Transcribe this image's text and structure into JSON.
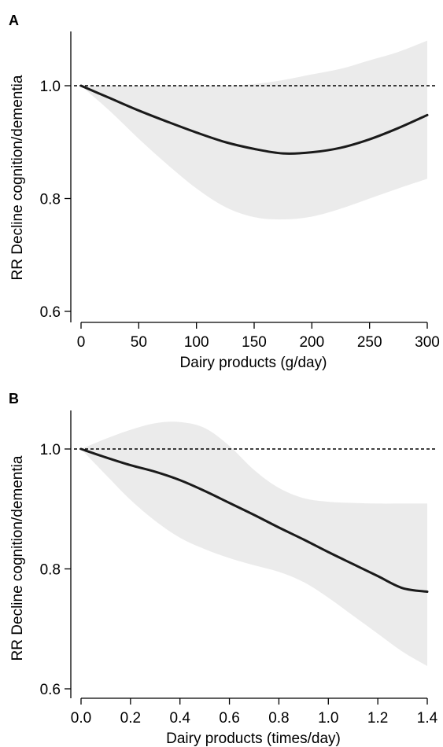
{
  "chart_data": [
    {
      "panel": "A",
      "type": "line",
      "xlabel": "Dairy products (g/day)",
      "ylabel": "RR Decline cognition/dementia",
      "xlim": [
        0,
        300
      ],
      "ylim": [
        0.6,
        1.1
      ],
      "xticks": [
        0,
        50,
        100,
        150,
        200,
        250,
        300
      ],
      "yticks": [
        0.6,
        0.8,
        1.0
      ],
      "xtick_labels": [
        "0",
        "50",
        "100",
        "150",
        "200",
        "250",
        "300"
      ],
      "ytick_labels": [
        "0.6",
        "0.8",
        "1.0"
      ],
      "reference_line": 1.0,
      "grid": false,
      "colors": {
        "line": "#1a1a1a",
        "band": "#ebebeb",
        "reference": "#000000"
      },
      "series": [
        {
          "role": "estimate",
          "x": [
            0,
            25,
            50,
            75,
            100,
            125,
            150,
            175,
            200,
            225,
            250,
            275,
            300
          ],
          "y": [
            1.0,
            0.978,
            0.956,
            0.936,
            0.917,
            0.9,
            0.888,
            0.88,
            0.882,
            0.89,
            0.905,
            0.925,
            0.948
          ]
        },
        {
          "role": "upper_ci",
          "x": [
            0,
            25,
            50,
            75,
            100,
            125,
            150,
            175,
            200,
            225,
            250,
            275,
            300
          ],
          "y": [
            1.0,
            1.0,
            1.0,
            1.0,
            1.0,
            1.0,
            1.003,
            1.01,
            1.02,
            1.03,
            1.045,
            1.06,
            1.08
          ]
        },
        {
          "role": "lower_ci",
          "x": [
            0,
            25,
            50,
            75,
            100,
            125,
            150,
            175,
            200,
            225,
            250,
            275,
            300
          ],
          "y": [
            1.0,
            0.955,
            0.906,
            0.86,
            0.818,
            0.785,
            0.767,
            0.763,
            0.768,
            0.782,
            0.8,
            0.818,
            0.835
          ]
        }
      ]
    },
    {
      "panel": "B",
      "type": "line",
      "xlabel": "Dairy products (times/day)",
      "ylabel": "RR Decline cognition/dementia",
      "xlim": [
        0,
        1.4
      ],
      "ylim": [
        0.6,
        1.07
      ],
      "xticks": [
        0.0,
        0.2,
        0.4,
        0.6,
        0.8,
        1.0,
        1.2,
        1.4
      ],
      "yticks": [
        0.6,
        0.8,
        1.0
      ],
      "xtick_labels": [
        "0.0",
        "0.2",
        "0.4",
        "0.6",
        "0.8",
        "1.0",
        "1.2",
        "1.4"
      ],
      "ytick_labels": [
        "0.6",
        "0.8",
        "1.0"
      ],
      "reference_line": 1.0,
      "grid": false,
      "colors": {
        "line": "#1a1a1a",
        "band": "#ebebeb",
        "reference": "#000000"
      },
      "series": [
        {
          "role": "estimate",
          "x": [
            0,
            0.1,
            0.2,
            0.3,
            0.4,
            0.5,
            0.6,
            0.7,
            0.8,
            0.9,
            1.0,
            1.1,
            1.2,
            1.3,
            1.4
          ],
          "y": [
            1.0,
            0.986,
            0.973,
            0.962,
            0.948,
            0.93,
            0.91,
            0.89,
            0.869,
            0.849,
            0.828,
            0.808,
            0.788,
            0.768,
            0.762
          ]
        },
        {
          "role": "upper_ci",
          "x": [
            0,
            0.1,
            0.2,
            0.3,
            0.4,
            0.5,
            0.6,
            0.7,
            0.8,
            0.9,
            1.0,
            1.1,
            1.2,
            1.3,
            1.4
          ],
          "y": [
            1.0,
            1.017,
            1.032,
            1.043,
            1.045,
            1.035,
            1.005,
            0.965,
            0.935,
            0.918,
            0.912,
            0.91,
            0.909,
            0.909,
            0.909
          ]
        },
        {
          "role": "lower_ci",
          "x": [
            0,
            0.1,
            0.2,
            0.3,
            0.4,
            0.5,
            0.6,
            0.7,
            0.8,
            0.9,
            1.0,
            1.1,
            1.2,
            1.3,
            1.4
          ],
          "y": [
            1.0,
            0.957,
            0.915,
            0.88,
            0.852,
            0.833,
            0.818,
            0.806,
            0.795,
            0.778,
            0.752,
            0.722,
            0.692,
            0.662,
            0.638
          ]
        }
      ]
    }
  ]
}
